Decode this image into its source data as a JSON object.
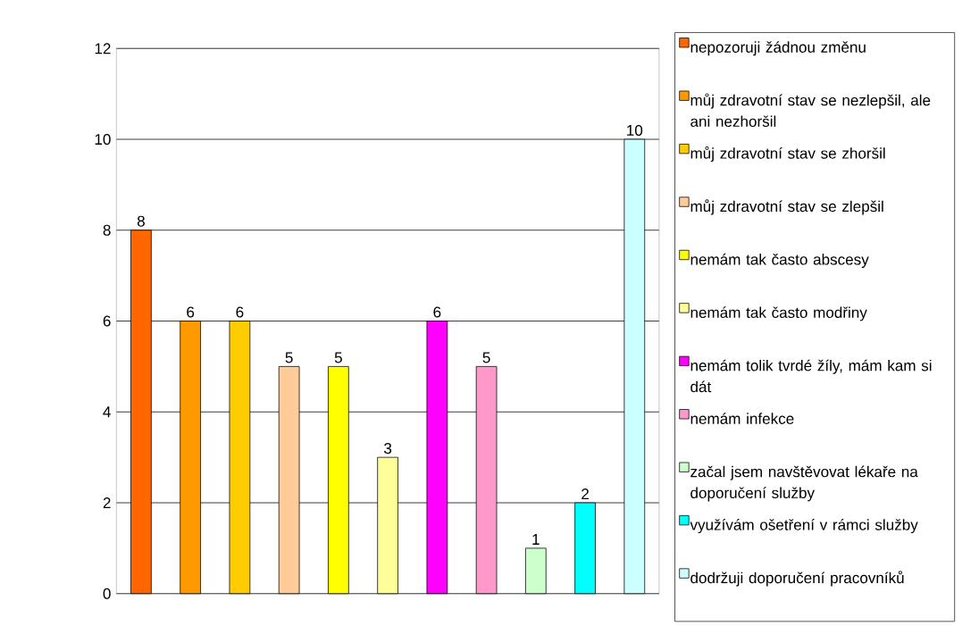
{
  "chart_data": {
    "type": "bar",
    "categories": [
      null,
      null,
      null,
      null,
      null,
      null,
      null,
      null,
      null,
      null,
      null
    ],
    "series": [
      {
        "name": "nepozoruji žádnou změnu",
        "color": "#ff6600",
        "values": [
          8,
          null,
          null,
          null,
          null,
          null,
          null,
          null,
          null,
          null,
          null
        ]
      },
      {
        "name": "můj zdravotní stav se nezlepšil, ale ani nezhoršil",
        "color": "#ff9900",
        "values": [
          null,
          6,
          null,
          null,
          null,
          null,
          null,
          null,
          null,
          null,
          null
        ]
      },
      {
        "name": "můj zdravotní stav se zhoršil",
        "color": "#ffcc00",
        "values": [
          null,
          null,
          6,
          null,
          null,
          null,
          null,
          null,
          null,
          null,
          null
        ]
      },
      {
        "name": "můj zdravotní stav se zlepšil",
        "color": "#ffcc99",
        "values": [
          null,
          null,
          null,
          5,
          null,
          null,
          null,
          null,
          null,
          null,
          null
        ]
      },
      {
        "name": "nemám tak často abscesy",
        "color": "#ffff00",
        "values": [
          null,
          null,
          null,
          null,
          5,
          null,
          null,
          null,
          null,
          null,
          null
        ]
      },
      {
        "name": "nemám tak často modřiny",
        "color": "#ffff99",
        "values": [
          null,
          null,
          null,
          null,
          null,
          3,
          null,
          null,
          null,
          null,
          null
        ]
      },
      {
        "name": "nemám tolik tvrdé žíly, mám kam si dát",
        "color": "#ff00ff",
        "values": [
          null,
          null,
          null,
          null,
          null,
          null,
          6,
          null,
          null,
          null,
          null
        ]
      },
      {
        "name": "nemám infekce",
        "color": "#ff99cc",
        "values": [
          null,
          null,
          null,
          null,
          null,
          null,
          null,
          5,
          null,
          null,
          null
        ]
      },
      {
        "name": "začal jsem navštěvovat lékaře na doporučení služby",
        "color": "#ccffcc",
        "values": [
          null,
          null,
          null,
          null,
          null,
          null,
          null,
          null,
          1,
          null,
          null
        ]
      },
      {
        "name": "využívám ošetření v rámci služby",
        "color": "#00ffff",
        "values": [
          null,
          null,
          null,
          null,
          null,
          null,
          null,
          null,
          null,
          2,
          null
        ]
      },
      {
        "name": "dodržuji doporučení pracovníků",
        "color": "#ccffff",
        "values": [
          null,
          null,
          null,
          null,
          null,
          null,
          null,
          null,
          null,
          null,
          10
        ]
      }
    ],
    "ylim": [
      0,
      12
    ],
    "yticks": [
      0,
      2,
      4,
      6,
      8,
      10,
      12
    ],
    "grid": "y",
    "legend": "right",
    "tick_labels": "y",
    "data_labels": true
  }
}
